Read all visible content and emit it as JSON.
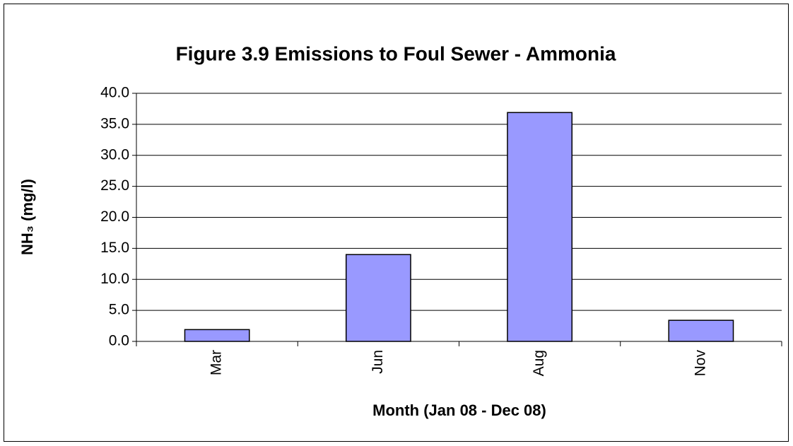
{
  "chart_data": {
    "type": "bar",
    "title": "Figure 3.9 Emissions to Foul Sewer - Ammonia",
    "x_label": "Month (Jan 08 - Dec 08)",
    "y_label": "NH₃ (mg/l)",
    "categories": [
      "Mar",
      "Jun",
      "Aug",
      "Nov"
    ],
    "values": [
      1.9,
      14.0,
      36.9,
      3.4
    ],
    "color": "#9999ff",
    "ylim": [
      0,
      40
    ],
    "yticks": [
      {
        "value": 0,
        "label": "0.0"
      },
      {
        "value": 5,
        "label": "5.0"
      },
      {
        "value": 10,
        "label": "10.0"
      },
      {
        "value": 15,
        "label": "15.0"
      },
      {
        "value": 20,
        "label": "20.0"
      },
      {
        "value": 25,
        "label": "25.0"
      },
      {
        "value": 30,
        "label": "30.0"
      },
      {
        "value": 35,
        "label": "35.0"
      },
      {
        "value": 40,
        "label": "40.0"
      }
    ],
    "grid": true
  }
}
